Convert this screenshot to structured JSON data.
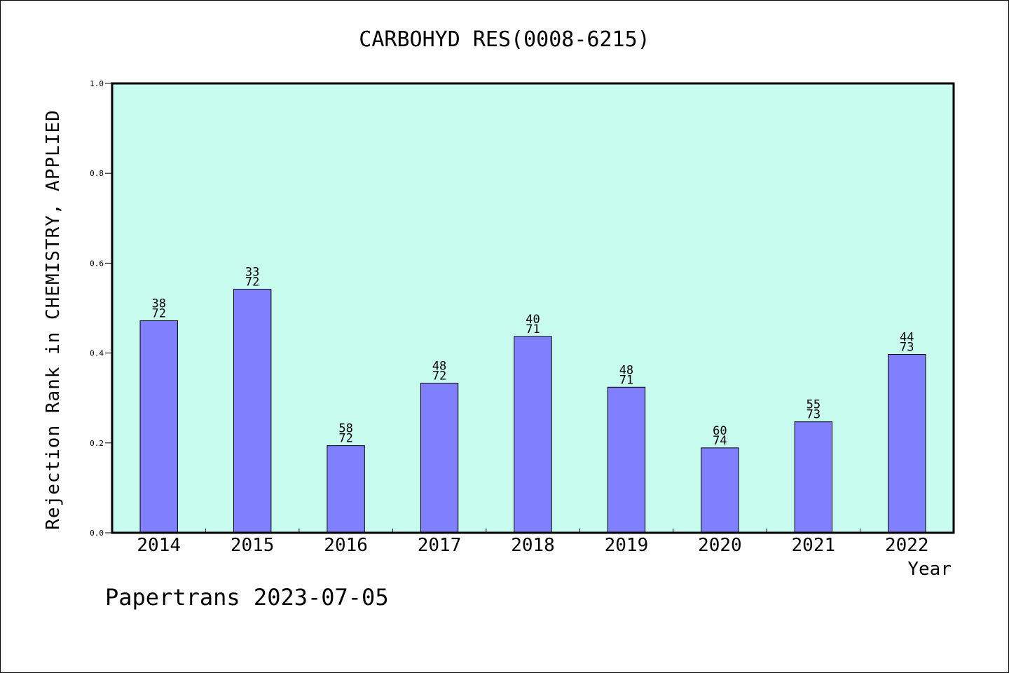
{
  "chart_data": {
    "type": "bar",
    "title": "CARBOHYD RES(0008-6215)",
    "xlabel": "Year",
    "ylabel": "Rejection Rank in CHEMISTRY, APPLIED",
    "ylim": [
      0,
      1.0
    ],
    "yticks": [
      "0.0",
      "0.2",
      "0.4",
      "0.6",
      "0.8",
      "1.0"
    ],
    "categories": [
      "2014",
      "2015",
      "2016",
      "2017",
      "2018",
      "2019",
      "2020",
      "2021",
      "2022"
    ],
    "values": [
      0.472,
      0.542,
      0.194,
      0.333,
      0.437,
      0.324,
      0.189,
      0.247,
      0.397
    ],
    "labels_top": [
      "38",
      "33",
      "58",
      "48",
      "40",
      "48",
      "60",
      "55",
      "44"
    ],
    "labels_bottom": [
      "72",
      "72",
      "72",
      "72",
      "71",
      "71",
      "74",
      "73",
      "73"
    ],
    "grid": false,
    "legend": "none",
    "colors": {
      "plot_background": "#c8fcee",
      "bar_fill": "#8080ff",
      "bar_stroke": "#000000"
    }
  },
  "footer": "Papertrans 2023-07-05"
}
